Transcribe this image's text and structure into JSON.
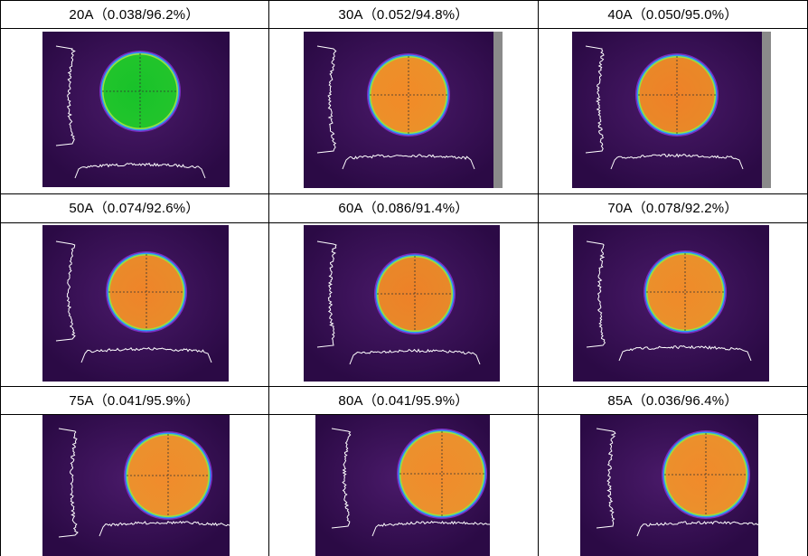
{
  "cells": [
    {
      "label": "20A（0.038/96.2%）",
      "disk_color": "#18c22a",
      "side_bar": false
    },
    {
      "label": "30A（0.052/94.8%）",
      "disk_color": "#f28a28",
      "side_bar": true
    },
    {
      "label": "40A（0.050/95.0%）",
      "disk_color": "#ef8127",
      "side_bar": true
    },
    {
      "label": "50A（0.074/92.6%）",
      "disk_color": "#ef8429",
      "side_bar": false
    },
    {
      "label": "60A（0.086/91.4%）",
      "disk_color": "#ee8128",
      "side_bar": false
    },
    {
      "label": "70A（0.078/92.2%）",
      "disk_color": "#f08a2a",
      "side_bar": false
    },
    {
      "label": "75A（0.041/95.9%）",
      "disk_color": "#f18b2c",
      "side_bar": false
    },
    {
      "label": "80A（0.041/95.9%）",
      "disk_color": "#f18b2c",
      "side_bar": false
    },
    {
      "label": "85A（0.036/96.4%）",
      "disk_color": "#f18a2b",
      "side_bar": false
    }
  ],
  "colors": {
    "background": "#2b0a45",
    "profile_line": "#ffffff",
    "ring_outer": "#7b2cbf",
    "ring_mid": "#2a9df4",
    "ring_inner": "#9be23b",
    "side_bar": "#8a8a8a"
  }
}
